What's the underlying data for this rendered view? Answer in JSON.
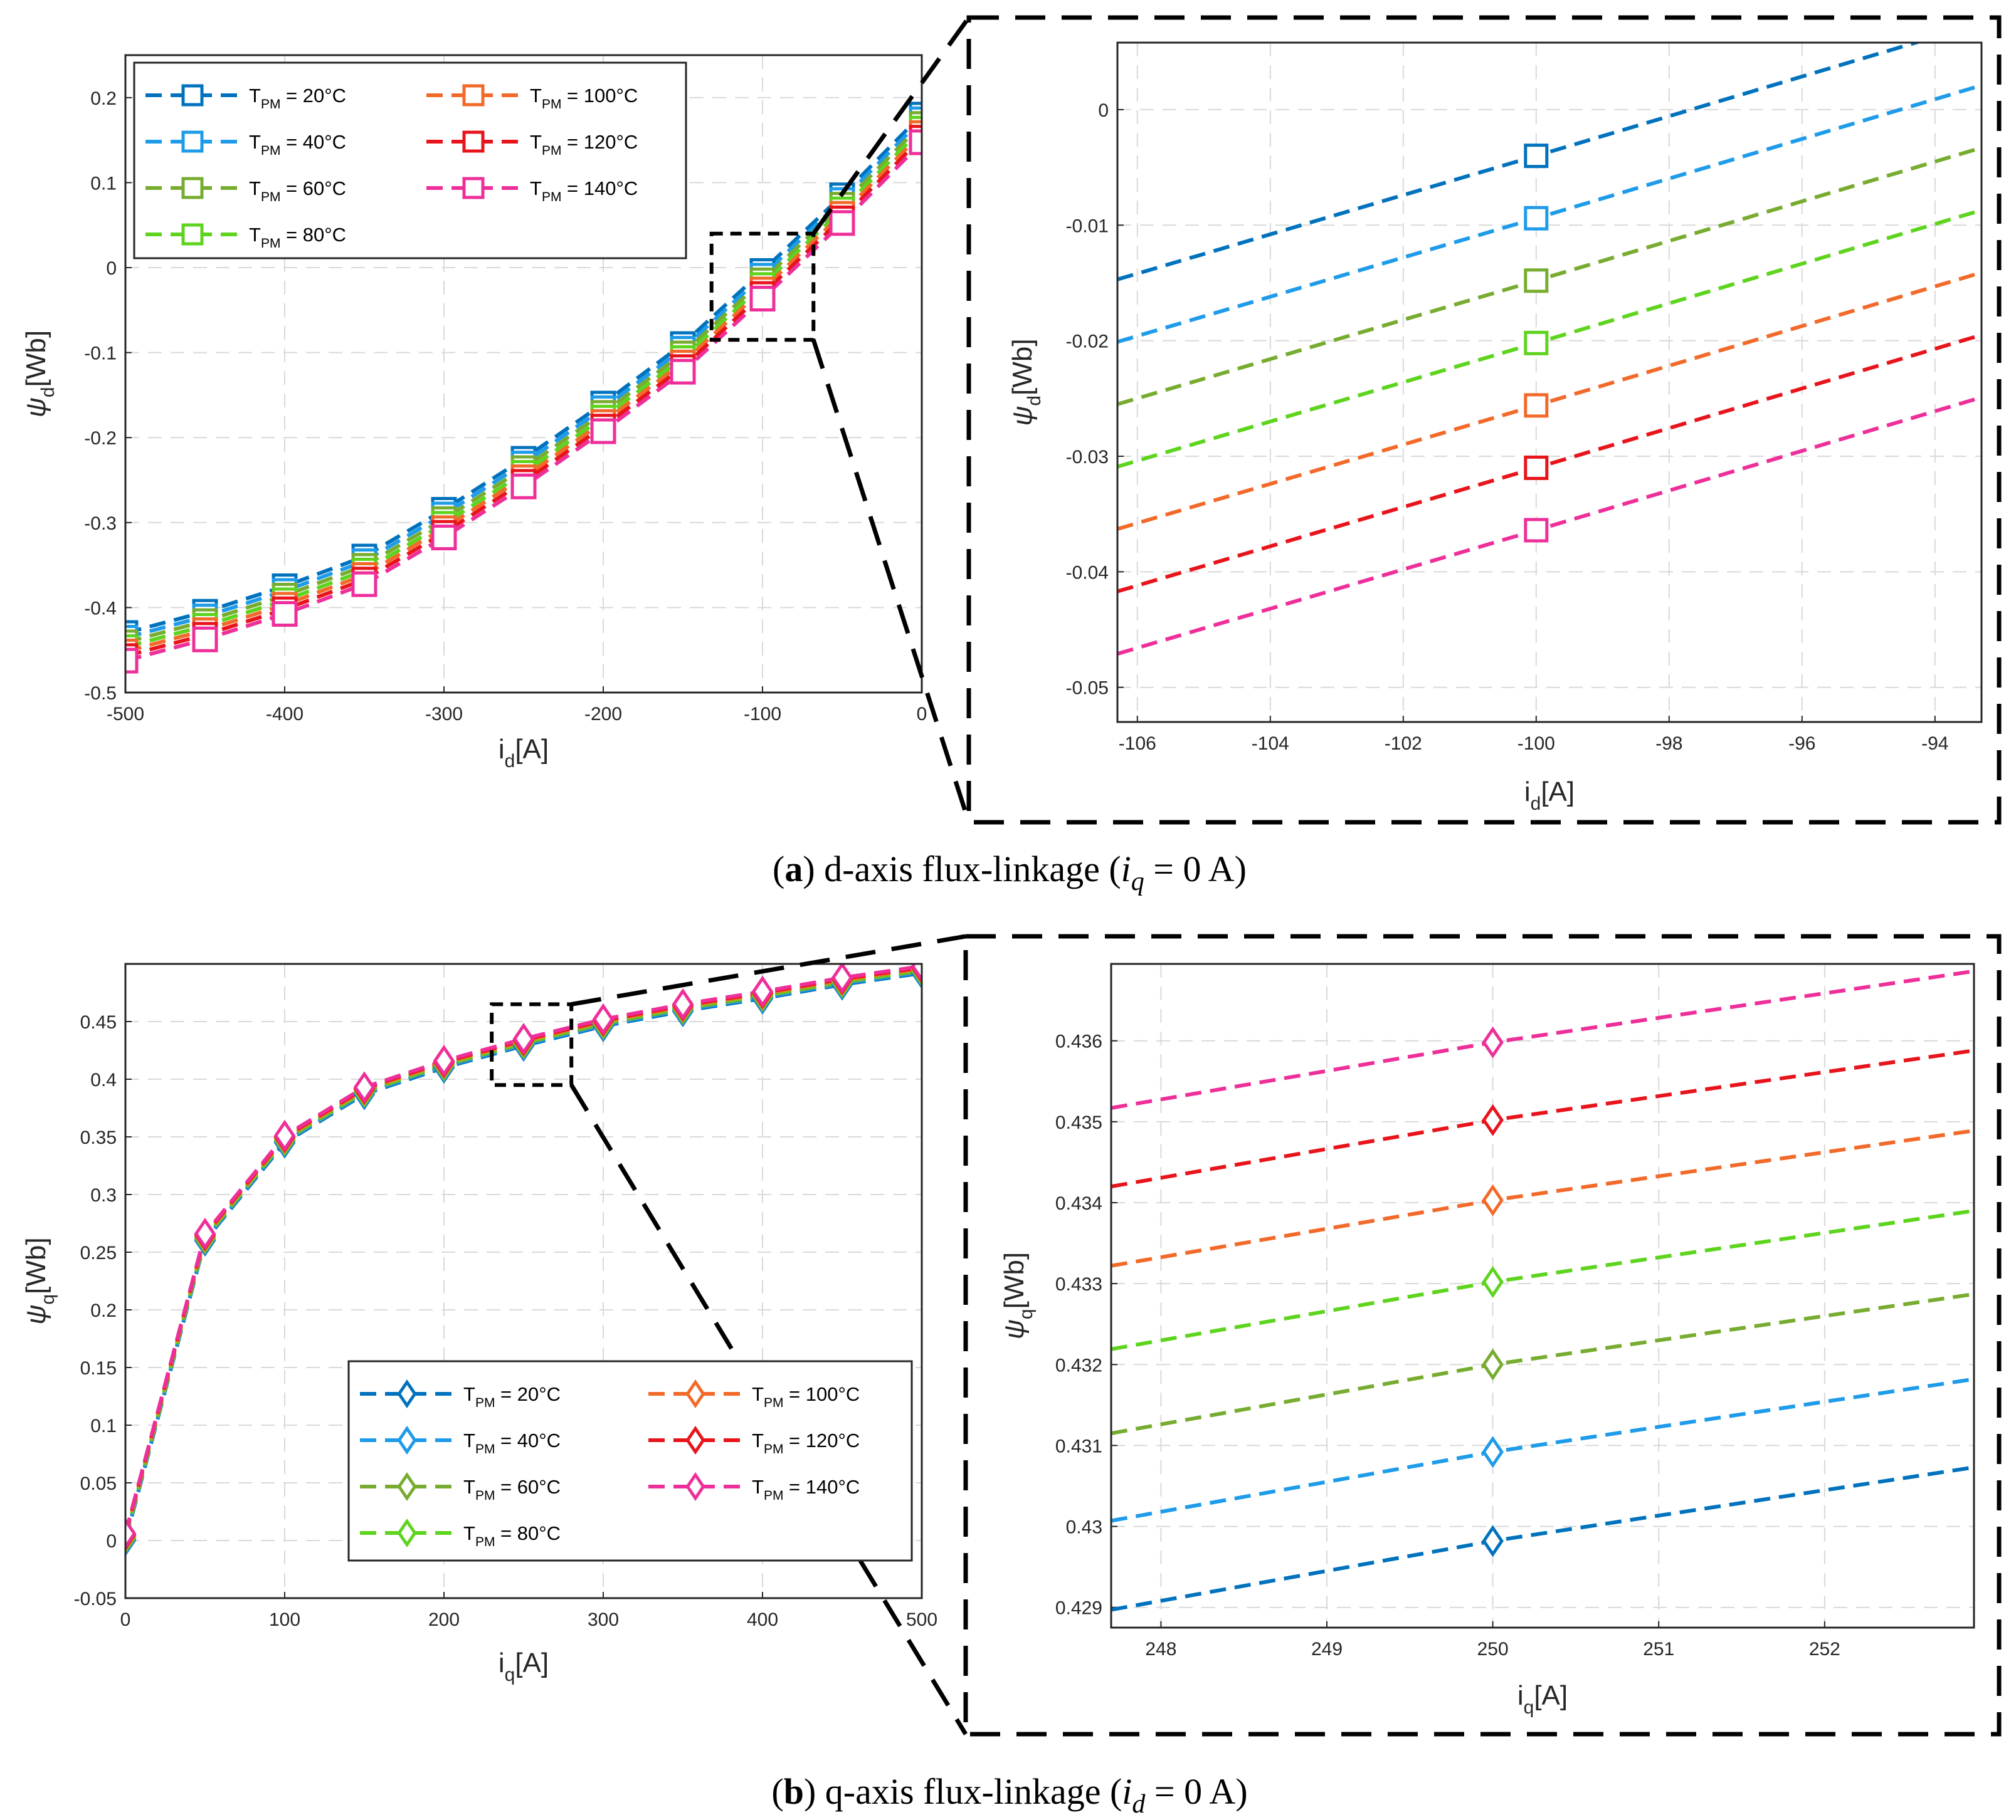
{
  "legend_items": [
    {
      "name": "T_PM = 20°C",
      "color": "#0072BD"
    },
    {
      "name": "T_PM = 40°C",
      "color": "#1E9BE9"
    },
    {
      "name": "T_PM = 60°C",
      "color": "#77AC30"
    },
    {
      "name": "T_PM = 80°C",
      "color": "#5ED41E"
    },
    {
      "name": "T_PM = 100°C",
      "color": "#F26A2A"
    },
    {
      "name": "T_PM = 120°C",
      "color": "#E8141C"
    },
    {
      "name": "T_PM = 140°C",
      "color": "#EE2F9A"
    }
  ],
  "chart_data": [
    {
      "id": "a_main",
      "type": "line",
      "marker": "square",
      "xlabel": "i_d[A]",
      "ylabel": "ψ_d[Wb]",
      "xlim": [
        -500,
        0
      ],
      "ylim": [
        -0.5,
        0.25
      ],
      "xticks": [
        -500,
        -400,
        -300,
        -200,
        -100,
        0
      ],
      "xtick_labels": [
        "-500",
        "-400",
        "-300",
        "-200",
        "-100",
        "0"
      ],
      "yticks": [
        -0.5,
        -0.4,
        -0.3,
        -0.2,
        -0.1,
        0,
        0.1,
        0.2
      ],
      "ytick_labels": [
        "-0.5",
        "-0.4",
        "-0.3",
        "-0.2",
        "-0.1",
        "0",
        "0.1",
        "0.2"
      ],
      "grid": true,
      "legend_position": "top-left",
      "x": [
        -500,
        -450,
        -400,
        -350,
        -300,
        -250,
        -200,
        -150,
        -100,
        -50,
        0
      ],
      "base": [
        -0.43,
        -0.405,
        -0.375,
        -0.34,
        -0.285,
        -0.225,
        -0.16,
        -0.09,
        -0.004,
        0.085,
        0.18
      ],
      "series_offsets": [
        0,
        -0.0055,
        -0.011,
        -0.0165,
        -0.0217,
        -0.0271,
        -0.0325
      ]
    },
    {
      "id": "a_zoom",
      "type": "line",
      "marker": "square",
      "xlabel": "i_d[A]",
      "ylabel": "ψ_d[Wb]",
      "xlim": [
        -106.3,
        -93.3
      ],
      "ylim": [
        -0.053,
        0.0058
      ],
      "xticks": [
        -106,
        -104,
        -102,
        -100,
        -98,
        -96,
        -94
      ],
      "xtick_labels": [
        "-106",
        "-104",
        "-102",
        "-100",
        "-98",
        "-96",
        "-94"
      ],
      "yticks": [
        -0.05,
        -0.04,
        -0.03,
        -0.02,
        -0.01,
        0
      ],
      "ytick_labels": [
        "-0.05",
        "-0.04",
        "-0.03",
        "-0.02",
        "-0.01",
        "0"
      ],
      "grid": true,
      "x": [
        -106.3,
        -100,
        -93.3
      ],
      "series": [
        {
          "name": "T_PM = 20°C",
          "values": [
            -0.0147,
            -0.004,
            0.0075
          ]
        },
        {
          "name": "T_PM = 40°C",
          "values": [
            -0.0201,
            -0.0094,
            0.0021
          ]
        },
        {
          "name": "T_PM = 60°C",
          "values": [
            -0.0255,
            -0.0148,
            -0.0033
          ]
        },
        {
          "name": "T_PM = 80°C",
          "values": [
            -0.0309,
            -0.0202,
            -0.0087
          ]
        },
        {
          "name": "T_PM = 100°C",
          "values": [
            -0.0363,
            -0.0256,
            -0.0141
          ]
        },
        {
          "name": "T_PM = 120°C",
          "values": [
            -0.0417,
            -0.031,
            -0.0195
          ]
        },
        {
          "name": "T_PM = 140°C",
          "values": [
            -0.0471,
            -0.0364,
            -0.0249
          ]
        }
      ]
    },
    {
      "id": "b_main",
      "type": "line",
      "marker": "diamond",
      "xlabel": "i_q[A]",
      "ylabel": "ψ_q[Wb]",
      "xlim": [
        0,
        500
      ],
      "ylim": [
        -0.05,
        0.5
      ],
      "xticks": [
        0,
        100,
        200,
        300,
        400,
        500
      ],
      "xtick_labels": [
        "0",
        "100",
        "200",
        "300",
        "400",
        "500"
      ],
      "yticks": [
        -0.05,
        0,
        0.05,
        0.1,
        0.15,
        0.2,
        0.25,
        0.3,
        0.35,
        0.4,
        0.45
      ],
      "ytick_labels": [
        "-0.05",
        "0",
        "0.05",
        "0.1",
        "0.15",
        "0.2",
        "0.25",
        "0.3",
        "0.35",
        "0.4",
        "0.45"
      ],
      "grid": true,
      "legend_position": "bottom-right",
      "x": [
        0,
        50,
        100,
        150,
        200,
        250,
        300,
        350,
        400,
        450,
        500
      ],
      "base": [
        0,
        0.26,
        0.345,
        0.387,
        0.41,
        0.429,
        0.446,
        0.459,
        0.47,
        0.482,
        0.492
      ],
      "series_offsets": [
        0,
        0.001,
        0.002,
        0.003,
        0.004,
        0.005,
        0.006
      ]
    },
    {
      "id": "b_zoom",
      "type": "line",
      "marker": "diamond",
      "xlabel": "i_q[A]",
      "ylabel": "ψ_q[Wb]",
      "xlim": [
        247.7,
        252.9
      ],
      "ylim": [
        0.42875,
        0.43695
      ],
      "xticks": [
        248,
        249,
        250,
        251,
        252
      ],
      "xtick_labels": [
        "248",
        "249",
        "250",
        "251",
        "252"
      ],
      "yticks": [
        0.429,
        0.43,
        0.431,
        0.432,
        0.433,
        0.434,
        0.435,
        0.436
      ],
      "ytick_labels": [
        "0.429",
        "0.43",
        "0.431",
        "0.432",
        "0.433",
        "0.434",
        "0.435",
        "0.436"
      ],
      "grid": true,
      "x": [
        247.7,
        250,
        252.9
      ],
      "series": [
        {
          "name": "T_PM = 20°C",
          "values": [
            0.42897,
            0.42982,
            0.43073
          ]
        },
        {
          "name": "T_PM = 40°C",
          "values": [
            0.43007,
            0.43092,
            0.43182
          ]
        },
        {
          "name": "T_PM = 60°C",
          "values": [
            0.43115,
            0.432,
            0.43287
          ]
        },
        {
          "name": "T_PM = 80°C",
          "values": [
            0.43219,
            0.43302,
            0.4339
          ]
        },
        {
          "name": "T_PM = 100°C",
          "values": [
            0.43322,
            0.43403,
            0.43489
          ]
        },
        {
          "name": "T_PM = 120°C",
          "values": [
            0.4342,
            0.43502,
            0.43588
          ]
        },
        {
          "name": "T_PM = 140°C",
          "values": [
            0.43517,
            0.43598,
            0.43686
          ]
        }
      ]
    }
  ],
  "captions": {
    "a": {
      "label": "a",
      "text": " d-axis flux-linkage (",
      "var": "i",
      "sub": "q",
      "tail": "  = 0 A)"
    },
    "b": {
      "label": "b",
      "text": " q-axis flux-linkage (",
      "var": "i",
      "sub": "d",
      "tail": "  = 0 A)"
    }
  }
}
